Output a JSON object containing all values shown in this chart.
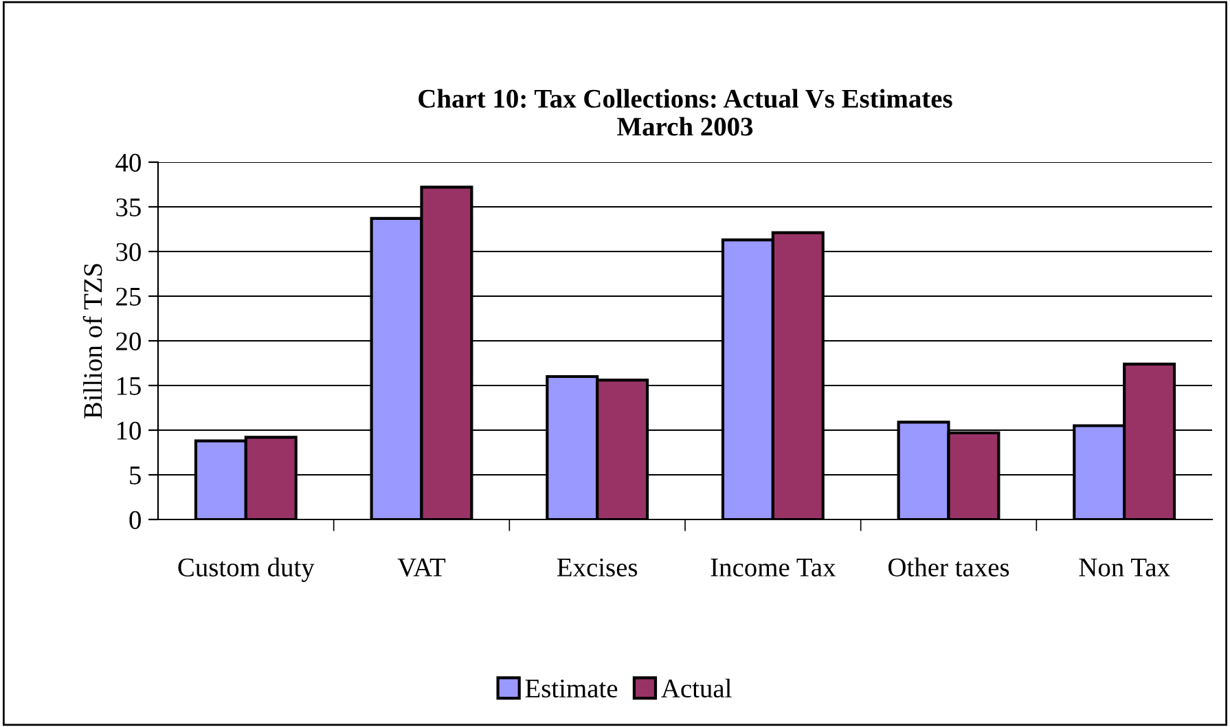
{
  "chart_data": {
    "type": "bar",
    "title": "Chart 10: Tax Collections: Actual Vs Estimates\nMarch 2003",
    "ylabel": "Billion of TZS",
    "categories": [
      "Custom duty",
      "VAT",
      "Excises",
      "Income Tax",
      "Other taxes",
      "Non Tax"
    ],
    "series": [
      {
        "name": "Estimate",
        "color": "#9999ff",
        "values": [
          8.8,
          33.7,
          16.0,
          31.3,
          10.9,
          10.5
        ]
      },
      {
        "name": "Actual",
        "color": "#993366",
        "values": [
          9.2,
          37.2,
          15.6,
          32.1,
          9.7,
          17.4
        ]
      }
    ],
    "ylim": [
      0,
      40
    ],
    "yticks": [
      0,
      5,
      10,
      15,
      20,
      25,
      30,
      35,
      40
    ],
    "grid": "y",
    "legend": "bottom"
  }
}
